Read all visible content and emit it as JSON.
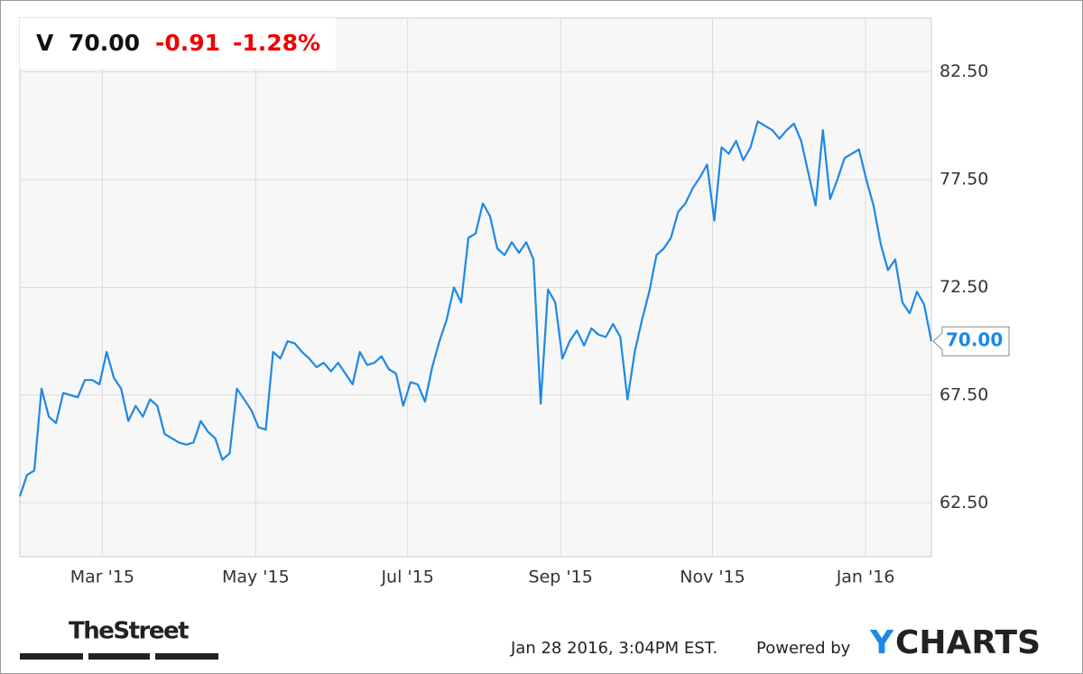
{
  "header": {
    "symbol": "V",
    "price": "70.00",
    "change": "-0.91",
    "change_pct": "-1.28%"
  },
  "price_badge": "70.00",
  "footer": {
    "brand_left": "TheStreet",
    "timestamp": "Jan 28 2016, 3:04PM EST.",
    "powered_by": "Powered by",
    "brand_y": "Y",
    "brand_rest": "CHARTS"
  },
  "chart_data": {
    "type": "line",
    "color": "#1e88e5",
    "grid": true,
    "values": [
      62.8,
      63.8,
      64.0,
      67.8,
      66.5,
      66.2,
      67.6,
      67.5,
      67.4,
      68.2,
      68.2,
      68.0,
      69.5,
      68.3,
      67.8,
      66.3,
      67.0,
      66.5,
      67.3,
      67.0,
      65.7,
      65.5,
      65.3,
      65.2,
      65.3,
      66.3,
      65.8,
      65.5,
      64.5,
      64.8,
      67.8,
      67.3,
      66.8,
      66.0,
      65.9,
      69.5,
      69.2,
      70.0,
      69.9,
      69.5,
      69.2,
      68.8,
      69.0,
      68.6,
      69.0,
      68.5,
      68.0,
      69.5,
      68.9,
      69.0,
      69.3,
      68.7,
      68.5,
      67.0,
      68.1,
      68.0,
      67.2,
      68.8,
      70.0,
      71.0,
      72.5,
      71.8,
      74.8,
      75.0,
      76.4,
      75.8,
      74.3,
      74.0,
      74.6,
      74.1,
      74.6,
      73.8,
      67.1,
      72.4,
      71.8,
      69.2,
      70.0,
      70.5,
      69.8,
      70.6,
      70.3,
      70.2,
      70.8,
      70.2,
      67.3,
      69.5,
      71.0,
      72.3,
      74.0,
      74.3,
      74.8,
      76.0,
      76.4,
      77.1,
      77.6,
      78.2,
      75.6,
      79.0,
      78.7,
      79.3,
      78.4,
      79.0,
      80.2,
      80.0,
      79.8,
      79.4,
      79.8,
      80.1,
      79.3,
      77.8,
      76.3,
      79.8,
      76.6,
      77.5,
      78.5,
      78.7,
      78.9,
      77.5,
      76.3,
      74.5,
      73.3,
      73.8,
      71.8,
      71.3,
      72.3,
      71.7,
      70.0
    ],
    "xlim": [
      0,
      126
    ],
    "xticks": [
      {
        "value": 11.4,
        "label": "Mar '15"
      },
      {
        "value": 32.6,
        "label": "May '15"
      },
      {
        "value": 53.6,
        "label": "Jul '15"
      },
      {
        "value": 74.75,
        "label": "Sep '15"
      },
      {
        "value": 95.75,
        "label": "Nov '15"
      },
      {
        "value": 116.9,
        "label": "Jan '16"
      }
    ],
    "ylim": [
      60,
      85
    ],
    "yticks": [
      {
        "value": 62.5,
        "label": "62.50"
      },
      {
        "value": 67.5,
        "label": "67.50"
      },
      {
        "value": 72.5,
        "label": "72.50"
      },
      {
        "value": 77.5,
        "label": "77.50"
      },
      {
        "value": 82.5,
        "label": "82.50"
      }
    ]
  }
}
